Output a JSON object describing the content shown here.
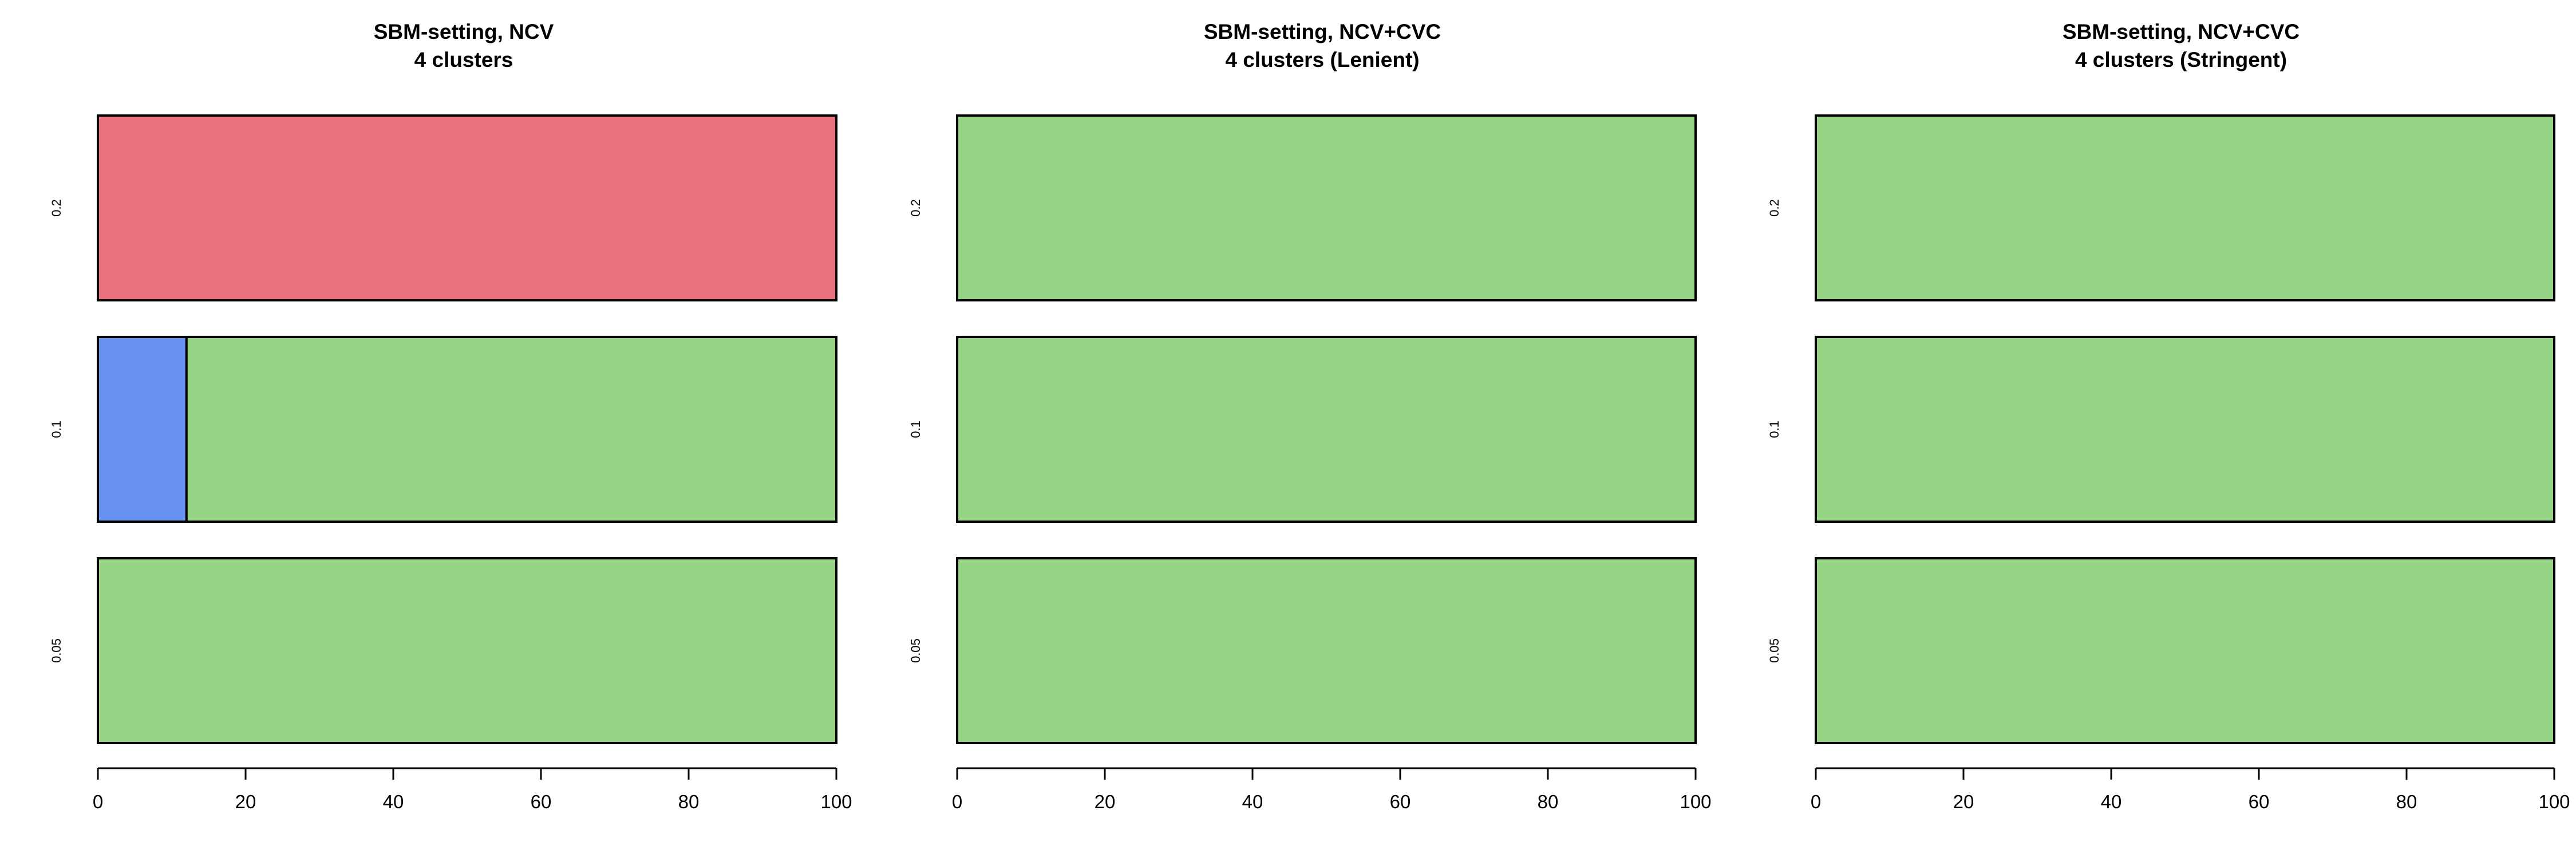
{
  "chart_data": [
    {
      "type": "bar",
      "orientation": "horizontal",
      "stacked": true,
      "title": "SBM-setting, NCV",
      "subtitle": "4 clusters",
      "categories": [
        "0.2",
        "0.1",
        "0.05"
      ],
      "series": [
        {
          "values": [
            0,
            12,
            0
          ],
          "color": "#6792F0"
        },
        {
          "values": [
            0,
            88,
            100
          ],
          "color": "#98D486"
        },
        {
          "values": [
            100,
            0,
            0
          ],
          "color": "#EB717C"
        }
      ],
      "xlim": [
        0,
        100
      ],
      "xticks": [
        "0",
        "20",
        "40",
        "60",
        "80",
        "100"
      ]
    },
    {
      "type": "bar",
      "orientation": "horizontal",
      "stacked": true,
      "title": "SBM-setting, NCV+CVC",
      "subtitle": "4 clusters (Lenient)",
      "categories": [
        "0.2",
        "0.1",
        "0.05"
      ],
      "series": [
        {
          "values": [
            0,
            0,
            0
          ],
          "color": "#6792F0"
        },
        {
          "values": [
            100,
            100,
            100
          ],
          "color": "#98D486"
        },
        {
          "values": [
            0,
            0,
            0
          ],
          "color": "#EB717C"
        }
      ],
      "xlim": [
        0,
        100
      ],
      "xticks": [
        "0",
        "20",
        "40",
        "60",
        "80",
        "100"
      ]
    },
    {
      "type": "bar",
      "orientation": "horizontal",
      "stacked": true,
      "title": "SBM-setting, NCV+CVC",
      "subtitle": "4 clusters (Stringent)",
      "categories": [
        "0.2",
        "0.1",
        "0.05"
      ],
      "series": [
        {
          "values": [
            0,
            0,
            0
          ],
          "color": "#6792F0"
        },
        {
          "values": [
            100,
            100,
            100
          ],
          "color": "#98D486"
        },
        {
          "values": [
            0,
            0,
            0
          ],
          "color": "#EB717C"
        }
      ],
      "xlim": [
        0,
        100
      ],
      "xticks": [
        "0",
        "20",
        "40",
        "60",
        "80",
        "100"
      ]
    }
  ]
}
